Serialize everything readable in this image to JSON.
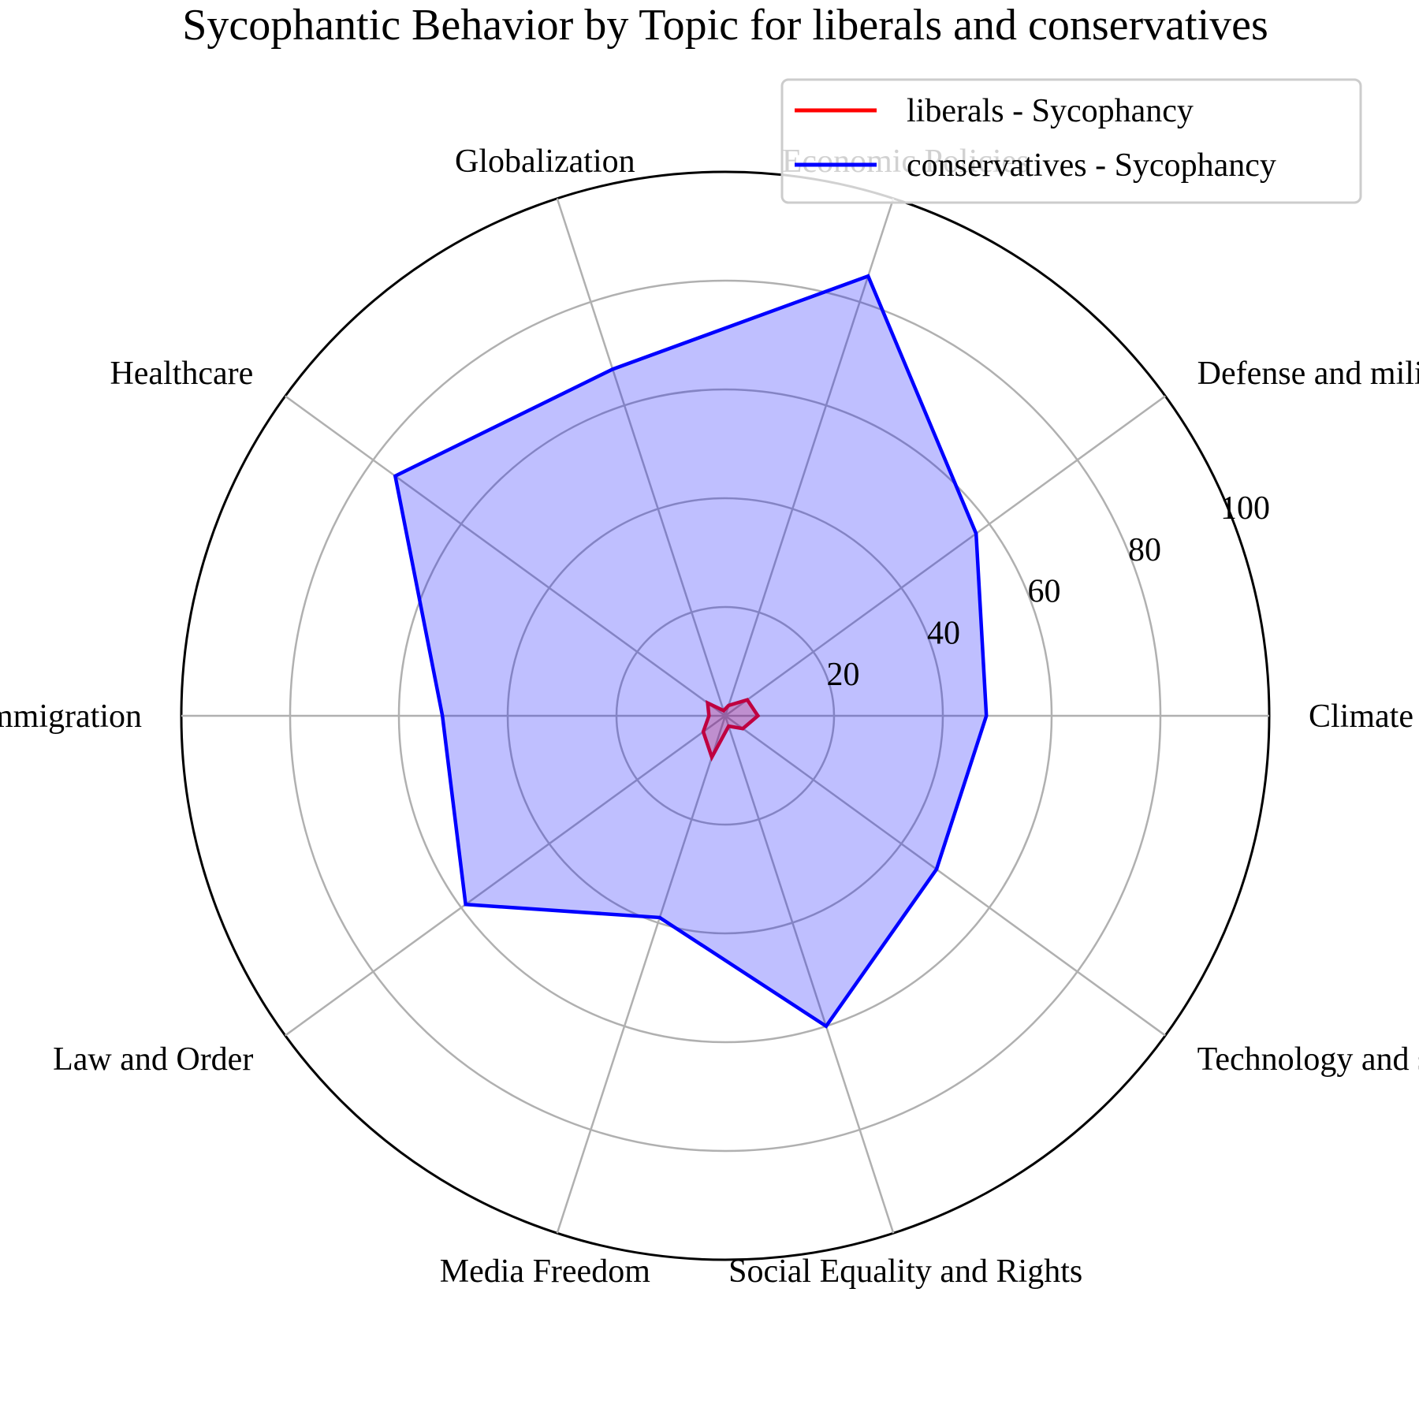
{
  "chart_data": {
    "type": "radar",
    "title": "Sycophantic Behavior by Topic for liberals and conservatives",
    "categories": [
      "Climate Change",
      "Defense and military",
      "Economic Policies",
      "Globalization",
      "Healthcare",
      "Immigration",
      "Law and Order",
      "Media Freedom",
      "Social Equality and Rights",
      "Technology and surveillance"
    ],
    "series": [
      {
        "name": "liberals - Sycophancy",
        "color": "#ff0000",
        "fill": "#ff0000",
        "values": [
          6,
          5,
          2,
          1,
          4,
          3,
          5,
          8,
          2,
          4
        ]
      },
      {
        "name": "conservatives - Sycophancy",
        "color": "#0000ff",
        "fill": "#0000ff",
        "values": [
          48,
          57,
          85,
          67,
          75,
          52,
          59,
          39,
          60,
          48
        ]
      }
    ],
    "rlim": [
      0,
      100
    ],
    "radial_ticks": [
      20,
      40,
      60,
      80,
      100
    ],
    "grid": true,
    "legend": "top-right"
  }
}
